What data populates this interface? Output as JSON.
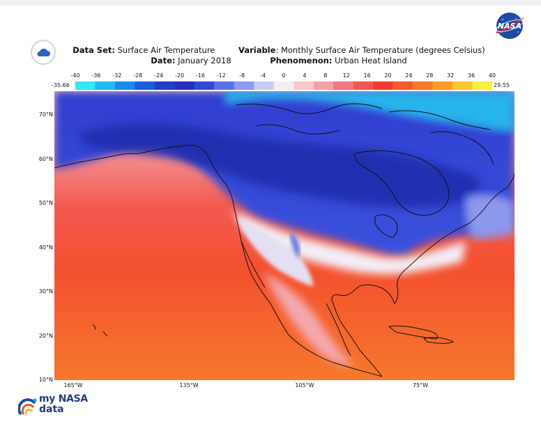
{
  "header": {
    "dataset_label": "Data Set:",
    "dataset_value": "Surface Air Temperature",
    "variable_label": "Variable",
    "variable_value": ": Monthly Surface Air Temperature (degrees Celsius)",
    "date_label": "Date:",
    "date_value": "January 2018",
    "phenomenon_label": "Phenomenon:",
    "phenomenon_value": "Urban Heat Island"
  },
  "colorbar": {
    "min_label": "-35.66",
    "max_label": "29.55",
    "ticks": [
      "-40",
      "-36",
      "-32",
      "-28",
      "-24",
      "-20",
      "-16",
      "-12",
      "-8",
      "-4",
      "0",
      "4",
      "8",
      "12",
      "16",
      "20",
      "24",
      "28",
      "32",
      "36",
      "40"
    ],
    "colors": [
      "#33e6f2",
      "#1fbaf0",
      "#1a8ae8",
      "#1a5ee0",
      "#1f3ec8",
      "#2a2ec0",
      "#3448d8",
      "#5a72e8",
      "#8c9cf0",
      "#c8ccf4",
      "#f4eef4",
      "#f8c8cc",
      "#f4a0a6",
      "#f07a80",
      "#f0584e",
      "#f03c30",
      "#f45a2a",
      "#f87a28",
      "#f89c28",
      "#f8c630",
      "#f8f03a"
    ]
  },
  "map": {
    "lat_labels": [
      "70°N",
      "60°N",
      "50°N",
      "40°N",
      "30°N",
      "20°N",
      "10°N"
    ],
    "lon_labels": [
      "165°W",
      "135°W",
      "105°W",
      "75°W"
    ]
  },
  "logos": {
    "nasa": "NASA",
    "mynasa_line1": "my NASA",
    "mynasa_line2": "data"
  },
  "icons": {
    "badge": "cloud-icon",
    "accent": "#2a63c8"
  }
}
